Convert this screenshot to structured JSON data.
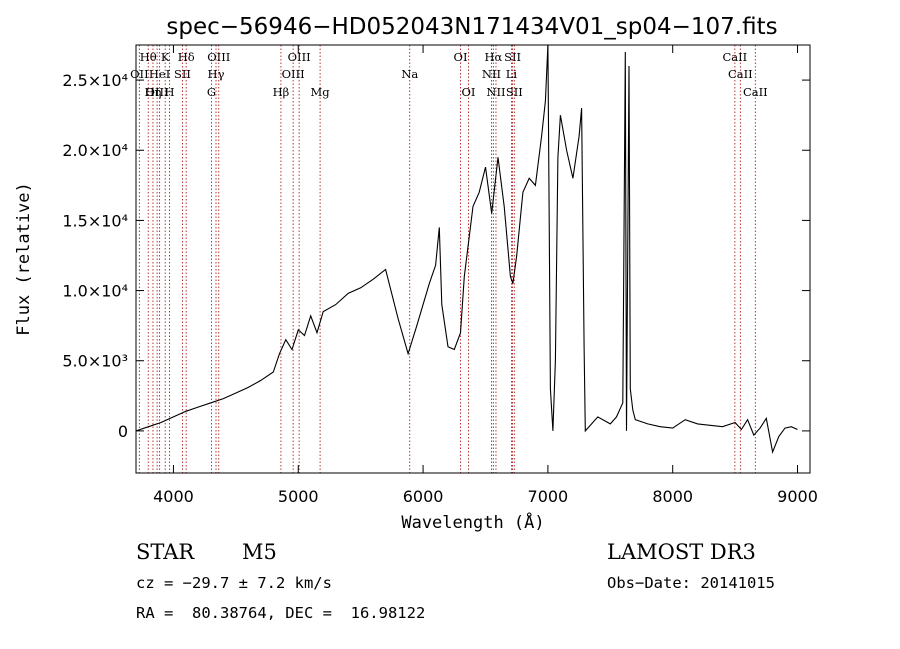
{
  "chart_data": {
    "type": "line",
    "title": "spec−56946−HD052043N171434V01_sp04−107.fits",
    "xlabel": "Wavelength (Å)",
    "ylabel": "Flux (relative)",
    "xlim": [
      3700,
      9100
    ],
    "ylim": [
      -3000,
      27500
    ],
    "x_ticks": [
      4000,
      5000,
      6000,
      7000,
      8000,
      9000
    ],
    "x_tick_labels": [
      "4000",
      "5000",
      "6000",
      "7000",
      "8000",
      "9000"
    ],
    "y_ticks": [
      0,
      5000,
      10000,
      15000,
      20000,
      25000
    ],
    "y_tick_labels": [
      "0",
      "5.0×10³",
      "1.0×10⁴",
      "1.5×10⁴",
      "2.0×10⁴",
      "2.5×10⁴"
    ],
    "series": [
      {
        "name": "spectrum",
        "x": [
          3700,
          3800,
          3900,
          4000,
          4100,
          4200,
          4300,
          4400,
          4500,
          4600,
          4700,
          4800,
          4850,
          4900,
          4950,
          5000,
          5050,
          5100,
          5150,
          5200,
          5300,
          5400,
          5500,
          5600,
          5700,
          5800,
          5880,
          5950,
          6050,
          6100,
          6130,
          6150,
          6200,
          6250,
          6300,
          6330,
          6400,
          6450,
          6500,
          6550,
          6600,
          6650,
          6700,
          6720,
          6750,
          6800,
          6850,
          6900,
          6950,
          6980,
          7000,
          7010,
          7020,
          7040,
          7060,
          7080,
          7100,
          7150,
          7200,
          7250,
          7270,
          7290,
          7300,
          7400,
          7500,
          7550,
          7600,
          7620,
          7630,
          7650,
          7660,
          7680,
          7700,
          7800,
          7900,
          8000,
          8100,
          8200,
          8300,
          8400,
          8500,
          8550,
          8600,
          8650,
          8700,
          8750,
          8800,
          8850,
          8900,
          8950,
          9000
        ],
        "y": [
          0,
          300,
          600,
          1000,
          1400,
          1700,
          2000,
          2300,
          2700,
          3100,
          3600,
          4200,
          5500,
          6500,
          5800,
          7200,
          6800,
          8200,
          7000,
          8500,
          9000,
          9800,
          10200,
          10800,
          11500,
          8000,
          5500,
          7500,
          10500,
          11800,
          14500,
          9000,
          6000,
          5800,
          7000,
          11000,
          16000,
          17000,
          18800,
          15500,
          19500,
          16000,
          11000,
          10500,
          12500,
          17000,
          18000,
          17500,
          21000,
          23500,
          27500,
          16000,
          3000,
          0,
          5000,
          19500,
          22500,
          20000,
          18000,
          21000,
          23000,
          6000,
          0,
          1000,
          500,
          1000,
          2000,
          27000,
          0,
          26000,
          3000,
          1500,
          800,
          500,
          300,
          200,
          800,
          500,
          400,
          300,
          600,
          100,
          800,
          -300,
          200,
          900,
          -1500,
          -400,
          200,
          300,
          100
        ]
      }
    ],
    "spectral_lines": [
      {
        "name": "Hθ",
        "wavelength": 3798,
        "row": 1
      },
      {
        "name": "Hη",
        "wavelength": 3836,
        "row": 3
      },
      {
        "name": "OII",
        "wavelength": 3727,
        "row": 2
      },
      {
        "name": "OIII",
        "wavelength": 3869,
        "row": 3
      },
      {
        "name": "K",
        "wavelength": 3934,
        "row": 1
      },
      {
        "name": "HeI",
        "wavelength": 3889,
        "row": 2
      },
      {
        "name": "H",
        "wavelength": 3969,
        "row": 3
      },
      {
        "name": "SII",
        "wavelength": 4072,
        "row": 2
      },
      {
        "name": "Hδ",
        "wavelength": 4102,
        "row": 1
      },
      {
        "name": "OIII",
        "wavelength": 4363,
        "row": 1
      },
      {
        "name": "Hγ",
        "wavelength": 4341,
        "row": 2
      },
      {
        "name": "G",
        "wavelength": 4305,
        "row": 3
      },
      {
        "name": "Hβ",
        "wavelength": 4861,
        "row": 3
      },
      {
        "name": "OIII",
        "wavelength": 4959,
        "row": 2
      },
      {
        "name": "OIII",
        "wavelength": 5007,
        "row": 1
      },
      {
        "name": "Mg",
        "wavelength": 5175,
        "row": 3
      },
      {
        "name": "Na",
        "wavelength": 5893,
        "row": 2
      },
      {
        "name": "OI",
        "wavelength": 6300,
        "row": 1
      },
      {
        "name": "OI",
        "wavelength": 6364,
        "row": 3
      },
      {
        "name": "Hα",
        "wavelength": 6563,
        "row": 1
      },
      {
        "name": "NII",
        "wavelength": 6548,
        "row": 2
      },
      {
        "name": "NII",
        "wavelength": 6584,
        "row": 3
      },
      {
        "name": "SII",
        "wavelength": 6717,
        "row": 1
      },
      {
        "name": "Li",
        "wavelength": 6708,
        "row": 2
      },
      {
        "name": "SII",
        "wavelength": 6731,
        "row": 3
      },
      {
        "name": "CaII",
        "wavelength": 8542,
        "row": 2
      },
      {
        "name": "CaII",
        "wavelength": 8498,
        "row": 1
      },
      {
        "name": "CaII",
        "wavelength": 8662,
        "row": 3
      }
    ]
  },
  "info": {
    "class_label": "STAR",
    "subclass": "M5",
    "redshift": "cz = −29.7 ± 7.2 km/s",
    "coords": "RA =  80.38764, DEC =  16.98122",
    "survey": "LAMOST DR3",
    "obs_date": "Obs−Date: 20141015"
  }
}
